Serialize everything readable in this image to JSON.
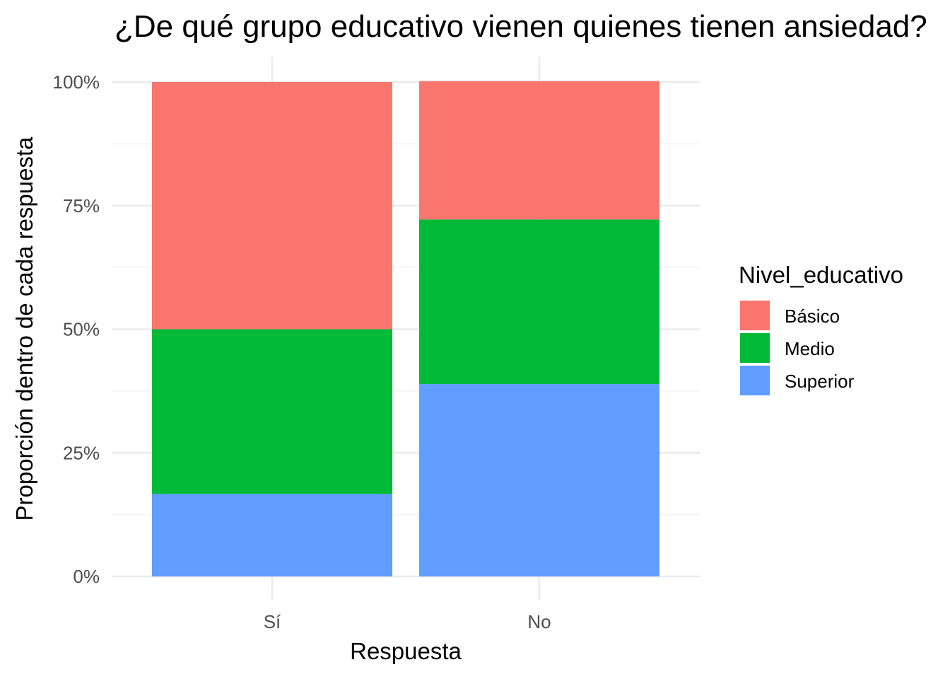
{
  "chart_data": {
    "type": "bar",
    "stacked": true,
    "title": "¿De qué grupo educativo vienen quienes tienen ansiedad?",
    "xlabel": "Respuesta",
    "ylabel": "Proporción dentro de cada respuesta",
    "categories": [
      "Sí",
      "No"
    ],
    "y_ticks": [
      "0%",
      "25%",
      "50%",
      "75%",
      "100%"
    ],
    "ylim": [
      0,
      1
    ],
    "grid": true,
    "legend": {
      "title": "Nivel_educativo",
      "position": "right"
    },
    "series": [
      {
        "name": "Básico",
        "color": "#F8766D",
        "values": [
          0.5,
          0.28
        ]
      },
      {
        "name": "Medio",
        "color": "#00BA38",
        "values": [
          0.333,
          0.333
        ]
      },
      {
        "name": "Superior",
        "color": "#619CFF",
        "values": [
          0.167,
          0.389
        ]
      }
    ]
  }
}
